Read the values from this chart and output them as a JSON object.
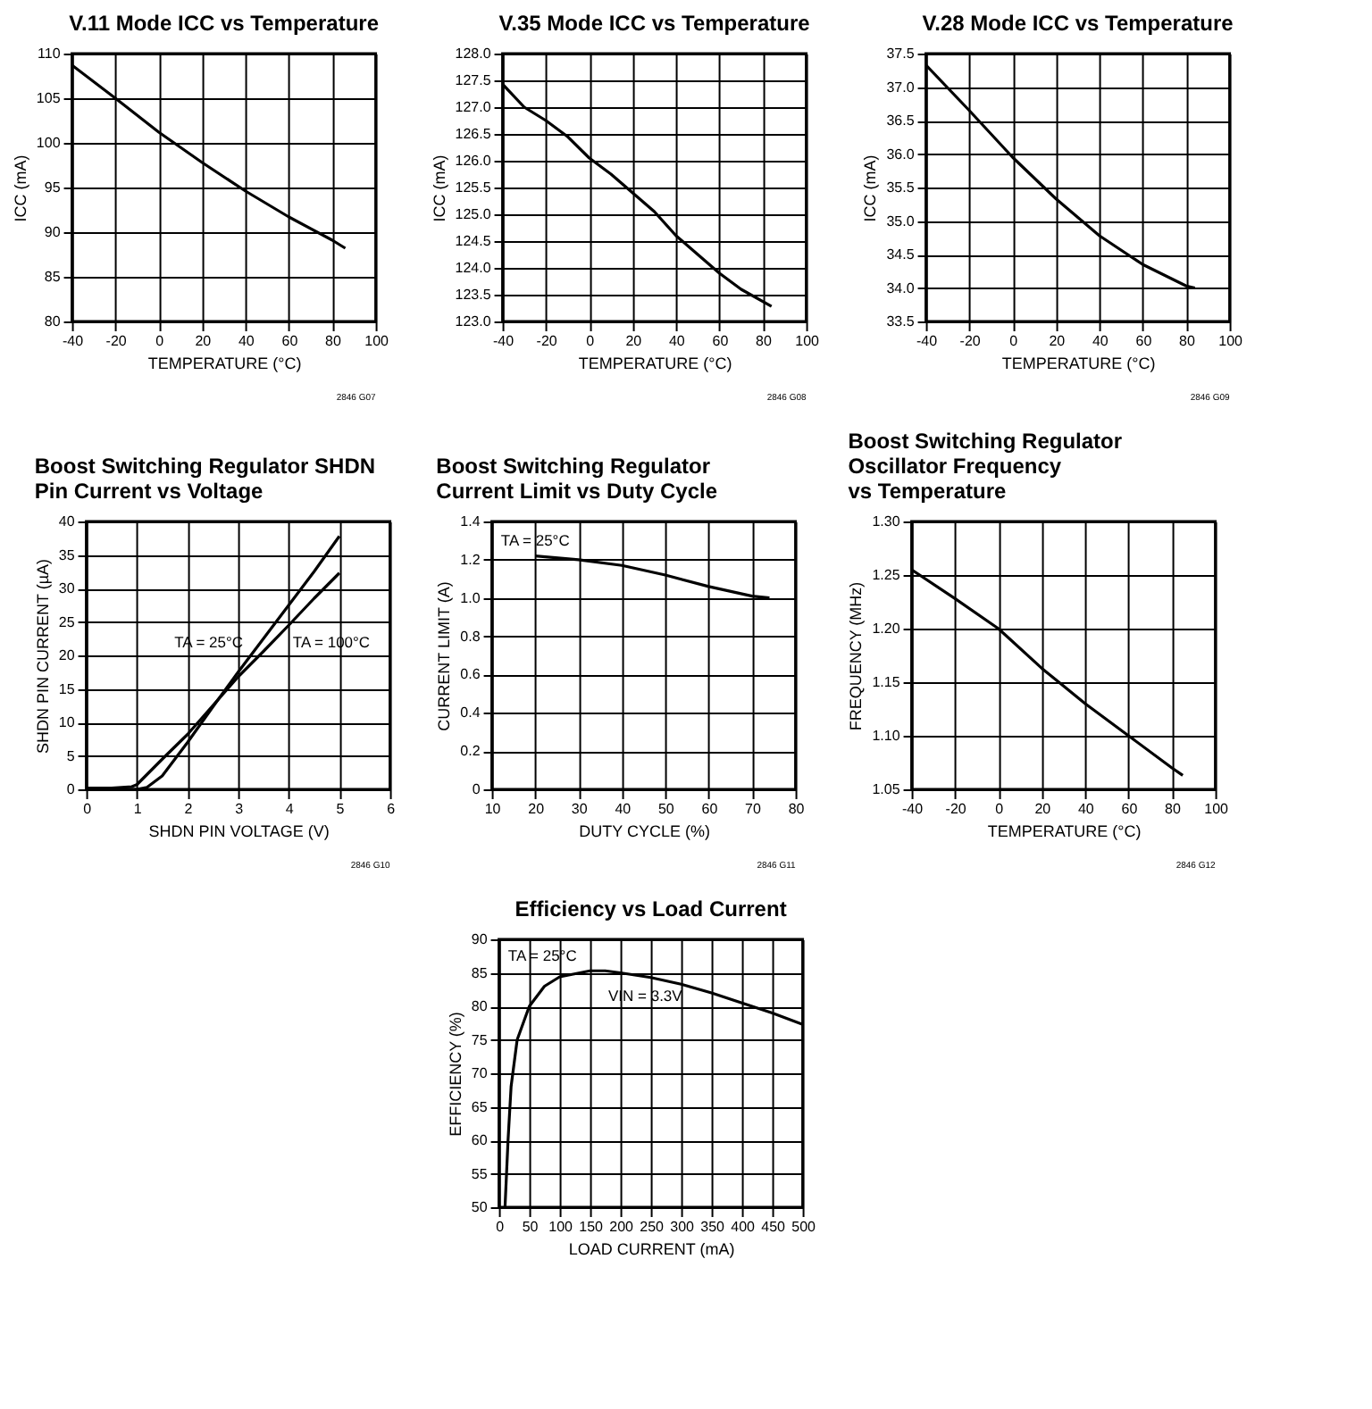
{
  "chart_data": [
    {
      "type": "line",
      "title": "V.11 Mode ICC vs Temperature",
      "xlabel": "TEMPERATURE (°C)",
      "ylabel": "ICC (mA)",
      "x": [
        -40,
        -20,
        0,
        20,
        40,
        60,
        80,
        86
      ],
      "series": [
        {
          "color": "#000000",
          "values": [
            108.7,
            105,
            101.2,
            97.8,
            94.6,
            91.7,
            89.1,
            88.2
          ]
        }
      ],
      "xlim": [
        -40,
        100
      ],
      "xticks": [
        -40,
        -20,
        0,
        20,
        40,
        60,
        80,
        100
      ],
      "ylim": [
        80,
        110
      ],
      "yticks": [
        80,
        85,
        90,
        95,
        100,
        105,
        110
      ],
      "grid": true,
      "legend": false,
      "annotations": [
        "2846 G07"
      ]
    },
    {
      "type": "line",
      "title": "V.35 Mode ICC vs Temperature",
      "xlabel": "TEMPERATURE (°C)",
      "ylabel": "ICC (mA)",
      "x": [
        -40,
        -30,
        -20,
        -10,
        0,
        10,
        20,
        30,
        40,
        50,
        60,
        70,
        84
      ],
      "series": [
        {
          "color": "#000000",
          "values": [
            127.43,
            127.0,
            126.75,
            126.45,
            126.05,
            125.75,
            125.4,
            125.05,
            124.6,
            124.25,
            123.9,
            123.6,
            123.28
          ]
        }
      ],
      "xlim": [
        -40,
        100
      ],
      "xticks": [
        -40,
        -20,
        0,
        20,
        40,
        60,
        80,
        100
      ],
      "ylim": [
        123,
        128
      ],
      "yticks": [
        {
          "value": 123,
          "label": "123.0"
        },
        123.5,
        {
          "value": 124,
          "label": "124.0"
        },
        124.5,
        {
          "value": 125,
          "label": "125.0"
        },
        125.5,
        {
          "value": 126,
          "label": "126.0"
        },
        126.5,
        {
          "value": 127,
          "label": "127.0"
        },
        127.5,
        {
          "value": 128,
          "label": "128.0"
        }
      ],
      "grid": true,
      "legend": false,
      "annotations": [
        "2846 G08"
      ]
    },
    {
      "type": "line",
      "title": "V.28 Mode ICC vs Temperature",
      "xlabel": "TEMPERATURE (°C)",
      "ylabel": "ICC (mA)",
      "x": [
        -40,
        -20,
        0,
        20,
        40,
        60,
        80,
        84
      ],
      "series": [
        {
          "color": "#000000",
          "values": [
            37.33,
            36.65,
            35.95,
            35.33,
            34.78,
            34.35,
            34.03,
            34.0
          ]
        }
      ],
      "xlim": [
        -40,
        100
      ],
      "xticks": [
        -40,
        -20,
        0,
        20,
        40,
        60,
        80,
        100
      ],
      "ylim": [
        33.5,
        37.5
      ],
      "yticks": [
        33.5,
        {
          "value": 34,
          "label": "34.0"
        },
        34.5,
        {
          "value": 35,
          "label": "35.0"
        },
        35.5,
        {
          "value": 36,
          "label": "36.0"
        },
        36.5,
        {
          "value": 37,
          "label": "37.0"
        },
        37.5
      ],
      "grid": true,
      "legend": false,
      "annotations": [
        "2846 G09"
      ]
    },
    {
      "type": "line",
      "title": "Boost Switching Regulator SHDN\nPin Current vs Voltage",
      "xlabel": "SHDN PIN VOLTAGE (V)",
      "ylabel": "SHDN PIN CURRENT (µA)",
      "series": [
        {
          "color": "#000000",
          "x": [
            0,
            0.5,
            0.9,
            1,
            1.5,
            2,
            2.5,
            3,
            3.5,
            4,
            4.5,
            5
          ],
          "values": [
            0.2,
            0.2,
            0.4,
            0.7,
            4.5,
            8.2,
            12.5,
            16.8,
            20.6,
            24.5,
            28.5,
            32.3
          ]
        },
        {
          "color": "#000000",
          "x": [
            0,
            1,
            1.2,
            1.5,
            1.7,
            2,
            2.5,
            3,
            3.5,
            4,
            4.5,
            5
          ],
          "values": [
            0,
            0,
            0.3,
            2,
            4,
            7,
            12.3,
            17.5,
            22.5,
            27.5,
            32.5,
            37.8
          ]
        }
      ],
      "xlim": [
        0,
        6
      ],
      "xticks": [
        0,
        1,
        2,
        3,
        4,
        5,
        6
      ],
      "ylim": [
        0,
        40
      ],
      "yticks": [
        0,
        5,
        10,
        15,
        20,
        25,
        30,
        35,
        40
      ],
      "grid": true,
      "legend": false,
      "annotations": [
        "TA = 25°C",
        "TA = 100°C",
        "2846 G10"
      ]
    },
    {
      "type": "line",
      "title": "Boost Switching Regulator\nCurrent Limit vs Duty Cycle",
      "xlabel": "DUTY CYCLE (%)",
      "ylabel": "CURRENT LIMIT (A)",
      "x": [
        20,
        30,
        40,
        50,
        60,
        70,
        74
      ],
      "series": [
        {
          "color": "#000000",
          "values": [
            1.22,
            1.2,
            1.17,
            1.12,
            1.06,
            1.01,
            1.0
          ]
        }
      ],
      "xlim": [
        10,
        80
      ],
      "xticks": [
        10,
        20,
        30,
        40,
        50,
        60,
        70,
        80
      ],
      "ylim": [
        0,
        1.4
      ],
      "yticks": [
        0,
        0.2,
        0.4,
        0.6,
        0.8,
        {
          "value": 1,
          "label": "1.0"
        },
        1.2,
        1.4
      ],
      "grid": true,
      "legend": false,
      "annotations": [
        "TA = 25°C",
        "2846 G11"
      ]
    },
    {
      "type": "line",
      "title": "Boost Switching Regulator\nOscillator Frequency\nvs Temperature",
      "xlabel": "TEMPERATURE (°C)",
      "ylabel": "FREQUENCY (MHz)",
      "x": [
        -40,
        -20,
        0,
        20,
        40,
        60,
        80,
        85
      ],
      "series": [
        {
          "color": "#000000",
          "values": [
            1.255,
            1.228,
            1.2,
            1.163,
            1.13,
            1.1,
            1.07,
            1.063
          ]
        }
      ],
      "xlim": [
        -40,
        100
      ],
      "xticks": [
        -40,
        -20,
        0,
        20,
        40,
        60,
        80,
        100
      ],
      "ylim": [
        1.05,
        1.3
      ],
      "yticks": [
        1.05,
        {
          "value": 1.1,
          "label": "1.10"
        },
        1.15,
        {
          "value": 1.2,
          "label": "1.20"
        },
        1.25,
        {
          "value": 1.3,
          "label": "1.30"
        }
      ],
      "grid": true,
      "legend": false,
      "annotations": [
        "2846 G12"
      ]
    },
    {
      "type": "line",
      "title": "Efficiency vs Load Current",
      "xlabel": "LOAD CURRENT (mA)",
      "ylabel": "EFFICIENCY (%)",
      "x": [
        10,
        15,
        20,
        30,
        50,
        75,
        100,
        150,
        175,
        200,
        250,
        300,
        350,
        400,
        450,
        500
      ],
      "series": [
        {
          "color": "#000000",
          "values": [
            50,
            60,
            68,
            75,
            80,
            83,
            84.4,
            85.3,
            85.3,
            85,
            84.3,
            83.3,
            82,
            80.5,
            79,
            77.3
          ]
        }
      ],
      "xlim": [
        0,
        500
      ],
      "xticks": [
        0,
        50,
        100,
        150,
        200,
        250,
        300,
        350,
        400,
        450,
        500
      ],
      "ylim": [
        50,
        90
      ],
      "yticks": [
        50,
        55,
        60,
        65,
        70,
        75,
        80,
        85,
        90
      ],
      "grid": true,
      "legend": false,
      "annotations": [
        "TA = 25°C",
        "VIN = 3.3V"
      ]
    }
  ]
}
